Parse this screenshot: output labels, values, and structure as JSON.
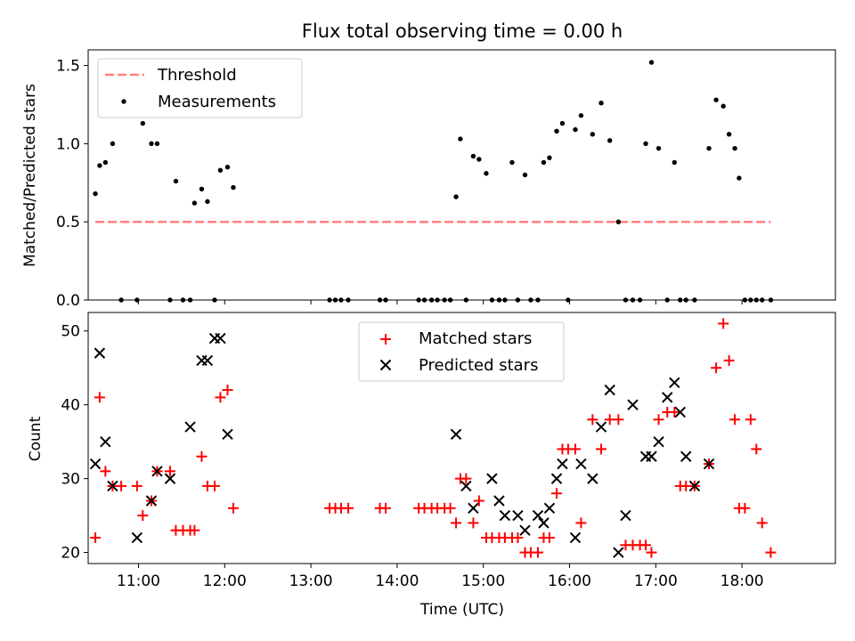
{
  "chart_data": [
    {
      "type": "scatter",
      "title": "Flux total observing time = 0.00 h",
      "ylabel": "Matched/Predicted stars",
      "xlabel": "",
      "xlim": [
        "10:25",
        "19:05"
      ],
      "ylim": [
        0,
        1.6
      ],
      "yticks": [
        0.0,
        0.5,
        1.0,
        1.5
      ],
      "ytick_labels": [
        "0.0",
        "0.5",
        "1.0",
        "1.5"
      ],
      "grid": false,
      "legend_position": "upper-left",
      "series": [
        {
          "name": "Threshold",
          "kind": "line",
          "style": "dashed",
          "color": "#ff8080",
          "x": [
            "10:30",
            "18:20"
          ],
          "y": [
            0.5,
            0.5
          ]
        },
        {
          "name": "Measurements",
          "kind": "scatter",
          "color": "#000000",
          "x": [
            "10:30",
            "10:33",
            "10:37",
            "10:42",
            "10:48",
            "10:59",
            "11:03",
            "11:09",
            "11:13",
            "11:22",
            "11:26",
            "11:31",
            "11:36",
            "11:39",
            "11:44",
            "11:48",
            "11:53",
            "11:57",
            "12:02",
            "12:06",
            "13:13",
            "13:17",
            "13:21",
            "13:26",
            "13:48",
            "13:52",
            "14:15",
            "14:19",
            "14:24",
            "14:28",
            "14:33",
            "14:37",
            "14:41",
            "14:44",
            "14:48",
            "14:53",
            "14:57",
            "15:02",
            "15:06",
            "15:11",
            "15:15",
            "15:20",
            "15:24",
            "15:29",
            "15:33",
            "15:38",
            "15:42",
            "15:46",
            "15:51",
            "15:55",
            "15:59",
            "16:04",
            "16:08",
            "16:16",
            "16:22",
            "16:28",
            "16:34",
            "16:39",
            "16:44",
            "16:49",
            "16:53",
            "16:57",
            "17:02",
            "17:08",
            "17:13",
            "17:17",
            "17:21",
            "17:27",
            "17:37",
            "17:42",
            "17:47",
            "17:51",
            "17:55",
            "17:58",
            "18:02",
            "18:06",
            "18:10",
            "18:14",
            "18:20"
          ],
          "y": [
            0.68,
            0.86,
            0.88,
            1.0,
            0.0,
            0.0,
            1.13,
            1.0,
            1.0,
            0.0,
            0.76,
            0.0,
            0.0,
            0.62,
            0.71,
            0.63,
            0.0,
            0.83,
            0.85,
            0.72,
            0.0,
            0.0,
            0.0,
            0.0,
            0.0,
            0.0,
            0.0,
            0.0,
            0.0,
            0.0,
            0.0,
            0.0,
            0.66,
            1.03,
            0.0,
            0.92,
            0.9,
            0.81,
            0.0,
            0.0,
            0.0,
            0.88,
            0.0,
            0.8,
            0.0,
            0.0,
            0.88,
            0.91,
            1.08,
            1.13,
            0.0,
            1.09,
            1.18,
            1.06,
            1.26,
            1.02,
            0.5,
            0.0,
            0.0,
            0.0,
            1.0,
            1.52,
            0.97,
            0.0,
            0.88,
            0.0,
            0.0,
            0.0,
            0.97,
            1.28,
            1.24,
            1.06,
            0.97,
            0.78,
            0.0,
            0.0,
            0.0,
            0.0,
            0.0
          ]
        }
      ]
    },
    {
      "type": "scatter",
      "title": "",
      "ylabel": "Count",
      "xlabel": "Time (UTC)",
      "xlim": [
        "10:25",
        "19:05"
      ],
      "ylim": [
        18.5,
        52.5
      ],
      "yticks": [
        20,
        30,
        40,
        50
      ],
      "ytick_labels": [
        "20",
        "30",
        "40",
        "50"
      ],
      "xticks": [
        "11:00",
        "12:00",
        "13:00",
        "14:00",
        "15:00",
        "16:00",
        "17:00",
        "18:00"
      ],
      "xtick_labels": [
        "11:00",
        "12:00",
        "13:00",
        "14:00",
        "15:00",
        "16:00",
        "17:00",
        "18:00"
      ],
      "grid": false,
      "legend_position": "upper-center",
      "series": [
        {
          "name": "Matched stars",
          "marker": "plus",
          "color": "#ff0000",
          "x": [
            "10:30",
            "10:33",
            "10:37",
            "10:42",
            "10:48",
            "10:59",
            "11:03",
            "11:09",
            "11:13",
            "11:22",
            "11:26",
            "11:31",
            "11:36",
            "11:39",
            "11:44",
            "11:48",
            "11:53",
            "11:57",
            "12:02",
            "12:06",
            "13:13",
            "13:17",
            "13:21",
            "13:26",
            "13:48",
            "13:52",
            "14:15",
            "14:19",
            "14:24",
            "14:28",
            "14:33",
            "14:37",
            "14:41",
            "14:44",
            "14:48",
            "14:53",
            "14:57",
            "15:02",
            "15:06",
            "15:11",
            "15:15",
            "15:20",
            "15:24",
            "15:29",
            "15:33",
            "15:38",
            "15:42",
            "15:46",
            "15:51",
            "15:55",
            "15:59",
            "16:04",
            "16:08",
            "16:16",
            "16:22",
            "16:28",
            "16:34",
            "16:39",
            "16:44",
            "16:49",
            "16:53",
            "16:57",
            "17:02",
            "17:08",
            "17:13",
            "17:17",
            "17:21",
            "17:27",
            "17:37",
            "17:42",
            "17:47",
            "17:51",
            "17:55",
            "17:58",
            "18:02",
            "18:06",
            "18:10",
            "18:14",
            "18:20"
          ],
          "y": [
            22,
            41,
            31,
            29,
            29,
            29,
            25,
            27,
            31,
            31,
            23,
            23,
            23,
            23,
            33,
            29,
            29,
            41,
            42,
            26,
            26,
            26,
            26,
            26,
            26,
            26,
            26,
            26,
            26,
            26,
            26,
            26,
            24,
            30,
            30,
            24,
            27,
            22,
            22,
            22,
            22,
            22,
            22,
            20,
            20,
            20,
            22,
            22,
            28,
            34,
            34,
            34,
            24,
            38,
            34,
            38,
            38,
            21,
            21,
            21,
            21,
            20,
            38,
            39,
            39,
            29,
            29,
            29,
            32,
            45,
            51,
            46,
            38,
            26,
            26,
            38,
            34,
            24,
            20
          ]
        },
        {
          "name": "Predicted stars",
          "marker": "x",
          "color": "#000000",
          "x": [
            "10:30",
            "10:33",
            "10:37",
            "10:42",
            "10:59",
            "11:09",
            "11:13",
            "11:22",
            "11:36",
            "11:44",
            "11:48",
            "11:53",
            "11:57",
            "12:02",
            "14:41",
            "14:48",
            "14:53",
            "15:06",
            "15:11",
            "15:15",
            "15:24",
            "15:29",
            "15:38",
            "15:42",
            "15:46",
            "15:51",
            "15:55",
            "16:04",
            "16:08",
            "16:16",
            "16:22",
            "16:28",
            "16:34",
            "16:39",
            "16:44",
            "16:53",
            "16:57",
            "17:02",
            "17:08",
            "17:13",
            "17:17",
            "17:21",
            "17:27",
            "17:37"
          ],
          "y": [
            32,
            47,
            35,
            29,
            22,
            27,
            31,
            30,
            37,
            46,
            46,
            49,
            49,
            36,
            36,
            29,
            26,
            30,
            27,
            25,
            25,
            23,
            25,
            24,
            26,
            30,
            32,
            22,
            32,
            30,
            37,
            42,
            20,
            25,
            40,
            33,
            33,
            35,
            41,
            43,
            39,
            33,
            29,
            32
          ]
        }
      ]
    }
  ],
  "legend_upper": {
    "threshold_label": "Threshold",
    "measurements_label": "Measurements"
  },
  "legend_lower": {
    "matched_label": "Matched stars",
    "predicted_label": "Predicted stars"
  },
  "colors": {
    "threshold": "#ff8080",
    "matched": "#ff0000",
    "predicted": "#000000",
    "measurement": "#000000"
  }
}
